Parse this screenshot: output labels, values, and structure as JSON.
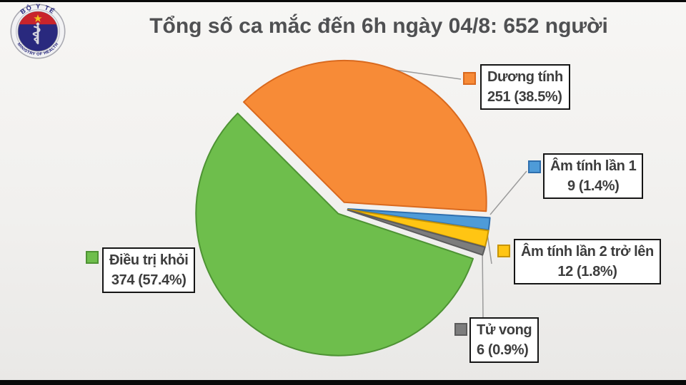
{
  "header": {
    "title": "Tổng số ca mắc đến 6h ngày 04/8: 652 người",
    "logo": {
      "top_text": "BỘ Y TẾ",
      "bottom_text": "MINISTRY OF HEALTH"
    }
  },
  "chart_data": {
    "type": "pie",
    "title": "Tổng số ca mắc đến 6h ngày 04/8: 652 người",
    "total": 652,
    "total_label": "652 người",
    "start_angle_deg": -45,
    "direction": "clockwise",
    "exploded": true,
    "legend_position": "callouts",
    "slices": [
      {
        "label": "Dương tính",
        "value": 251,
        "percent": 38.5,
        "value_label": "251 (38.5%)",
        "color": "#F78B37",
        "border": "#D9691E"
      },
      {
        "label": "Âm tính lần 1",
        "value": 9,
        "percent": 1.4,
        "value_label": "9 (1.4%)",
        "color": "#4E9BD8",
        "border": "#2F6FAE"
      },
      {
        "label": "Âm tính lần 2 trở lên",
        "value": 12,
        "percent": 1.8,
        "value_label": "12 (1.8%)",
        "color": "#FFC513",
        "border": "#C79400"
      },
      {
        "label": "Tử vong",
        "value": 6,
        "percent": 0.9,
        "value_label": "6 (0.9%)",
        "color": "#7D7D7D",
        "border": "#5C5C5C"
      },
      {
        "label": "Điều trị khỏi",
        "value": 374,
        "percent": 57.4,
        "value_label": "374 (57.4%)",
        "color": "#6EBE4C",
        "border": "#4E9334"
      }
    ]
  }
}
